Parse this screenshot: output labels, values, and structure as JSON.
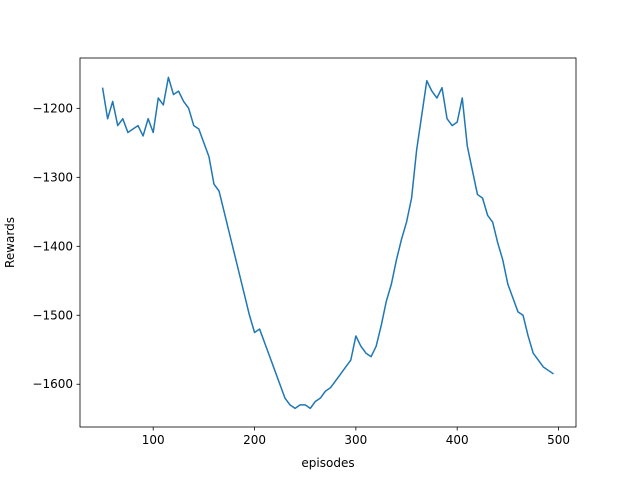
{
  "chart_data": {
    "type": "line",
    "xlabel": "episodes",
    "ylabel": "Rewards",
    "x": [
      50,
      55,
      60,
      65,
      70,
      75,
      80,
      85,
      90,
      95,
      100,
      105,
      110,
      115,
      120,
      125,
      130,
      135,
      140,
      145,
      150,
      155,
      160,
      165,
      170,
      175,
      180,
      185,
      190,
      195,
      200,
      205,
      210,
      215,
      220,
      225,
      230,
      235,
      240,
      245,
      250,
      255,
      260,
      265,
      270,
      275,
      280,
      285,
      290,
      295,
      300,
      305,
      310,
      315,
      320,
      325,
      330,
      335,
      340,
      345,
      350,
      355,
      360,
      365,
      370,
      375,
      380,
      385,
      390,
      395,
      400,
      405,
      410,
      415,
      420,
      425,
      430,
      435,
      440,
      445,
      450,
      455,
      460,
      465,
      470,
      475,
      480,
      485,
      490,
      495
    ],
    "series": [
      {
        "name": "rewards",
        "color": "#1f77b4",
        "values": [
          -1170,
          -1215,
          -1190,
          -1225,
          -1215,
          -1235,
          -1230,
          -1225,
          -1240,
          -1215,
          -1235,
          -1185,
          -1195,
          -1155,
          -1180,
          -1175,
          -1190,
          -1200,
          -1225,
          -1230,
          -1250,
          -1270,
          -1310,
          -1320,
          -1350,
          -1380,
          -1410,
          -1440,
          -1470,
          -1500,
          -1525,
          -1520,
          -1540,
          -1560,
          -1580,
          -1600,
          -1620,
          -1630,
          -1635,
          -1630,
          -1630,
          -1635,
          -1625,
          -1620,
          -1610,
          -1605,
          -1595,
          -1585,
          -1575,
          -1565,
          -1530,
          -1545,
          -1555,
          -1560,
          -1545,
          -1515,
          -1480,
          -1455,
          -1420,
          -1390,
          -1365,
          -1330,
          -1260,
          -1210,
          -1160,
          -1175,
          -1185,
          -1170,
          -1215,
          -1225,
          -1220,
          -1185,
          -1255,
          -1290,
          -1325,
          -1330,
          -1355,
          -1365,
          -1395,
          -1420,
          -1455,
          -1475,
          -1495,
          -1500,
          -1530,
          -1555,
          -1565,
          -1575,
          -1580,
          -1585
        ]
      }
    ],
    "xlim": [
      27.75,
      517.25
    ],
    "ylim": [
      -1662,
      -1127
    ],
    "xticks": [
      100,
      200,
      300,
      400,
      500
    ],
    "yticks": [
      {
        "value": -1200,
        "label": "−1200"
      },
      {
        "value": -1300,
        "label": "−1300"
      },
      {
        "value": -1400,
        "label": "−1400"
      },
      {
        "value": -1500,
        "label": "−1500"
      },
      {
        "value": -1600,
        "label": "−1600"
      }
    ]
  }
}
